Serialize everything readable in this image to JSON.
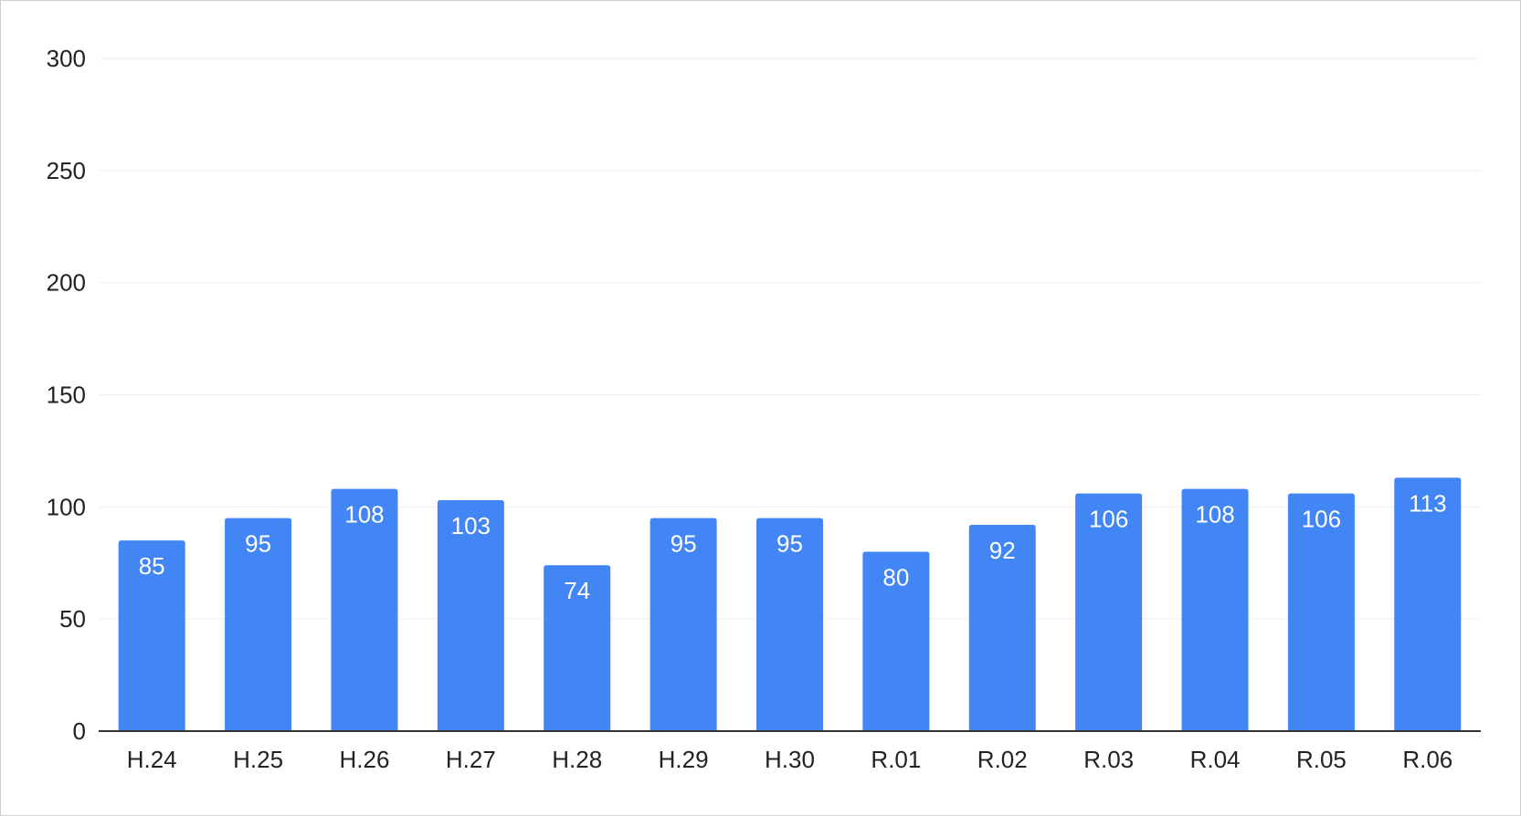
{
  "chart_data": {
    "type": "bar",
    "categories": [
      "H.24",
      "H.25",
      "H.26",
      "H.27",
      "H.28",
      "H.29",
      "H.30",
      "R.01",
      "R.02",
      "R.03",
      "R.04",
      "R.05",
      "R.06"
    ],
    "values": [
      85,
      95,
      108,
      103,
      74,
      95,
      95,
      80,
      92,
      106,
      108,
      106,
      113
    ],
    "ylim": [
      0,
      300
    ],
    "yticks": [
      0,
      50,
      100,
      150,
      200,
      250,
      300
    ],
    "grid": true,
    "legend": "none",
    "data_labels": "inside-top",
    "bar_color": "#4285f4",
    "axis_color": "#333333",
    "grid_color": "#efefef"
  }
}
